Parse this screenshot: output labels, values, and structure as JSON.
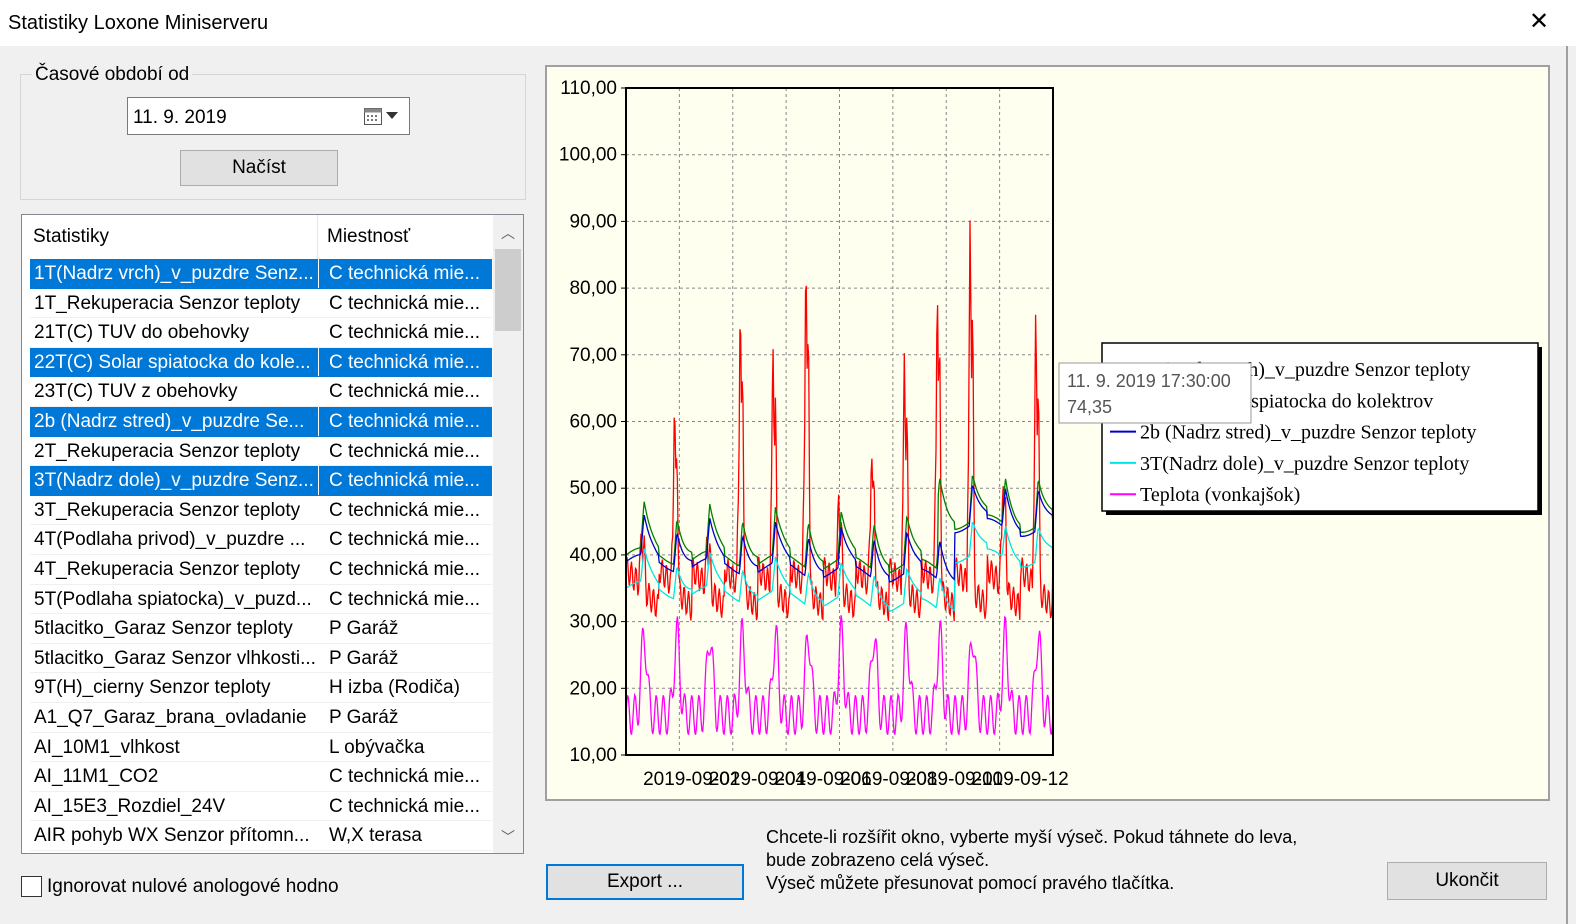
{
  "window": {
    "title": "Statistiky Loxone Miniserveru",
    "close_glyph": "✕"
  },
  "period": {
    "label": "Časové období od",
    "date_value": "11.  9. 2019",
    "load_button": "Načíst"
  },
  "list": {
    "columns": [
      "Statistiky",
      "Miestnosť"
    ],
    "rows": [
      {
        "name": "1T(Nadrz vrch)_v_puzdre Senz...",
        "room": "C technická mie...",
        "selected": true
      },
      {
        "name": "1T_Rekuperacia Senzor teploty",
        "room": "C technická mie...",
        "selected": false
      },
      {
        "name": "21T(C) TUV do obehovky",
        "room": "C technická mie...",
        "selected": false
      },
      {
        "name": "22T(C) Solar spiatocka do kole...",
        "room": "C technická mie...",
        "selected": true
      },
      {
        "name": "23T(C) TUV z obehovky",
        "room": "C technická mie...",
        "selected": false
      },
      {
        "name": "2b (Nadrz stred)_v_puzdre Se...",
        "room": "C technická mie...",
        "selected": true
      },
      {
        "name": "2T_Rekuperacia Senzor teploty",
        "room": "C technická mie...",
        "selected": false
      },
      {
        "name": "3T(Nadrz dole)_v_puzdre Senz...",
        "room": "C technická mie...",
        "selected": true
      },
      {
        "name": "3T_Rekuperacia Senzor teploty",
        "room": "C technická mie...",
        "selected": false
      },
      {
        "name": "4T(Podlaha privod)_v_puzdre ...",
        "room": "C technická mie...",
        "selected": false
      },
      {
        "name": "4T_Rekuperacia Senzor teploty",
        "room": "C technická mie...",
        "selected": false
      },
      {
        "name": "5T(Podlaha spiatocka)_v_puzd...",
        "room": "C technická mie...",
        "selected": false
      },
      {
        "name": "5tlacitko_Garaz Senzor teploty",
        "room": "P Garáž",
        "selected": false
      },
      {
        "name": "5tlacitko_Garaz Senzor vlhkosti...",
        "room": "P Garáž",
        "selected": false
      },
      {
        "name": "9T(H)_cierny Senzor teploty",
        "room": "H izba (Rodiča)",
        "selected": false
      },
      {
        "name": "A1_Q7_Garaz_brana_ovladanie",
        "room": "P Garáž",
        "selected": false
      },
      {
        "name": "AI_10M1_vlhkost",
        "room": "L obývačka",
        "selected": false
      },
      {
        "name": "AI_11M1_CO2",
        "room": "C technická mie...",
        "selected": false
      },
      {
        "name": "AI_15E3_Rozdiel_24V",
        "room": "C technická mie...",
        "selected": false
      },
      {
        "name": "AIR pohyb WX Senzor přítomn...",
        "room": "W,X terasa",
        "selected": false
      }
    ]
  },
  "ignore_zero": {
    "label": "Ignorovat nulové anologové hodno",
    "checked": false
  },
  "chart_data": {
    "type": "line",
    "ylim": [
      10,
      110
    ],
    "y_ticks": [
      "110,00",
      "100,00",
      "90,00",
      "80,00",
      "70,00",
      "60,00",
      "50,00",
      "40,00",
      "30,00",
      "20,00",
      "10,00"
    ],
    "x_range_days": [
      0,
      13
    ],
    "x_ticks": [
      "2019-09-02",
      "2019-09-04",
      "2019-09-06",
      "2019-09-08",
      "2019-09-10",
      "2019-09-12"
    ],
    "grid": true,
    "legend_position": "right",
    "series": [
      {
        "name": "1T(Nadrz vrch)_v_puzdre Senzor teploty",
        "color": "#008000"
      },
      {
        "name": "22T(C) Solar spiatocka do kolektrov",
        "color": "#ff0000"
      },
      {
        "name": "2b (Nadrz stred)_v_puzdre Senzor teploty",
        "color": "#0000cc"
      },
      {
        "name": "3T(Nadrz dole)_v_puzdre Senzor teploty",
        "color": "#00e5e5"
      },
      {
        "name": "Teplota (vonkajšok)",
        "color": "#ff00ff"
      }
    ],
    "tooltip": {
      "time": "11. 9. 2019 17:30:00",
      "value": "74,35"
    }
  },
  "buttons": {
    "export": "Export ...",
    "close": "Ukončit"
  },
  "hint": {
    "line1": "Chcete-li rozšířit okno, vyberte myší výseč. Pokud táhnete do leva,",
    "line2": "bude zobrazeno celá výseč.",
    "line3": "Výseč můžete přesunovat pomocí pravého tlačítka."
  }
}
